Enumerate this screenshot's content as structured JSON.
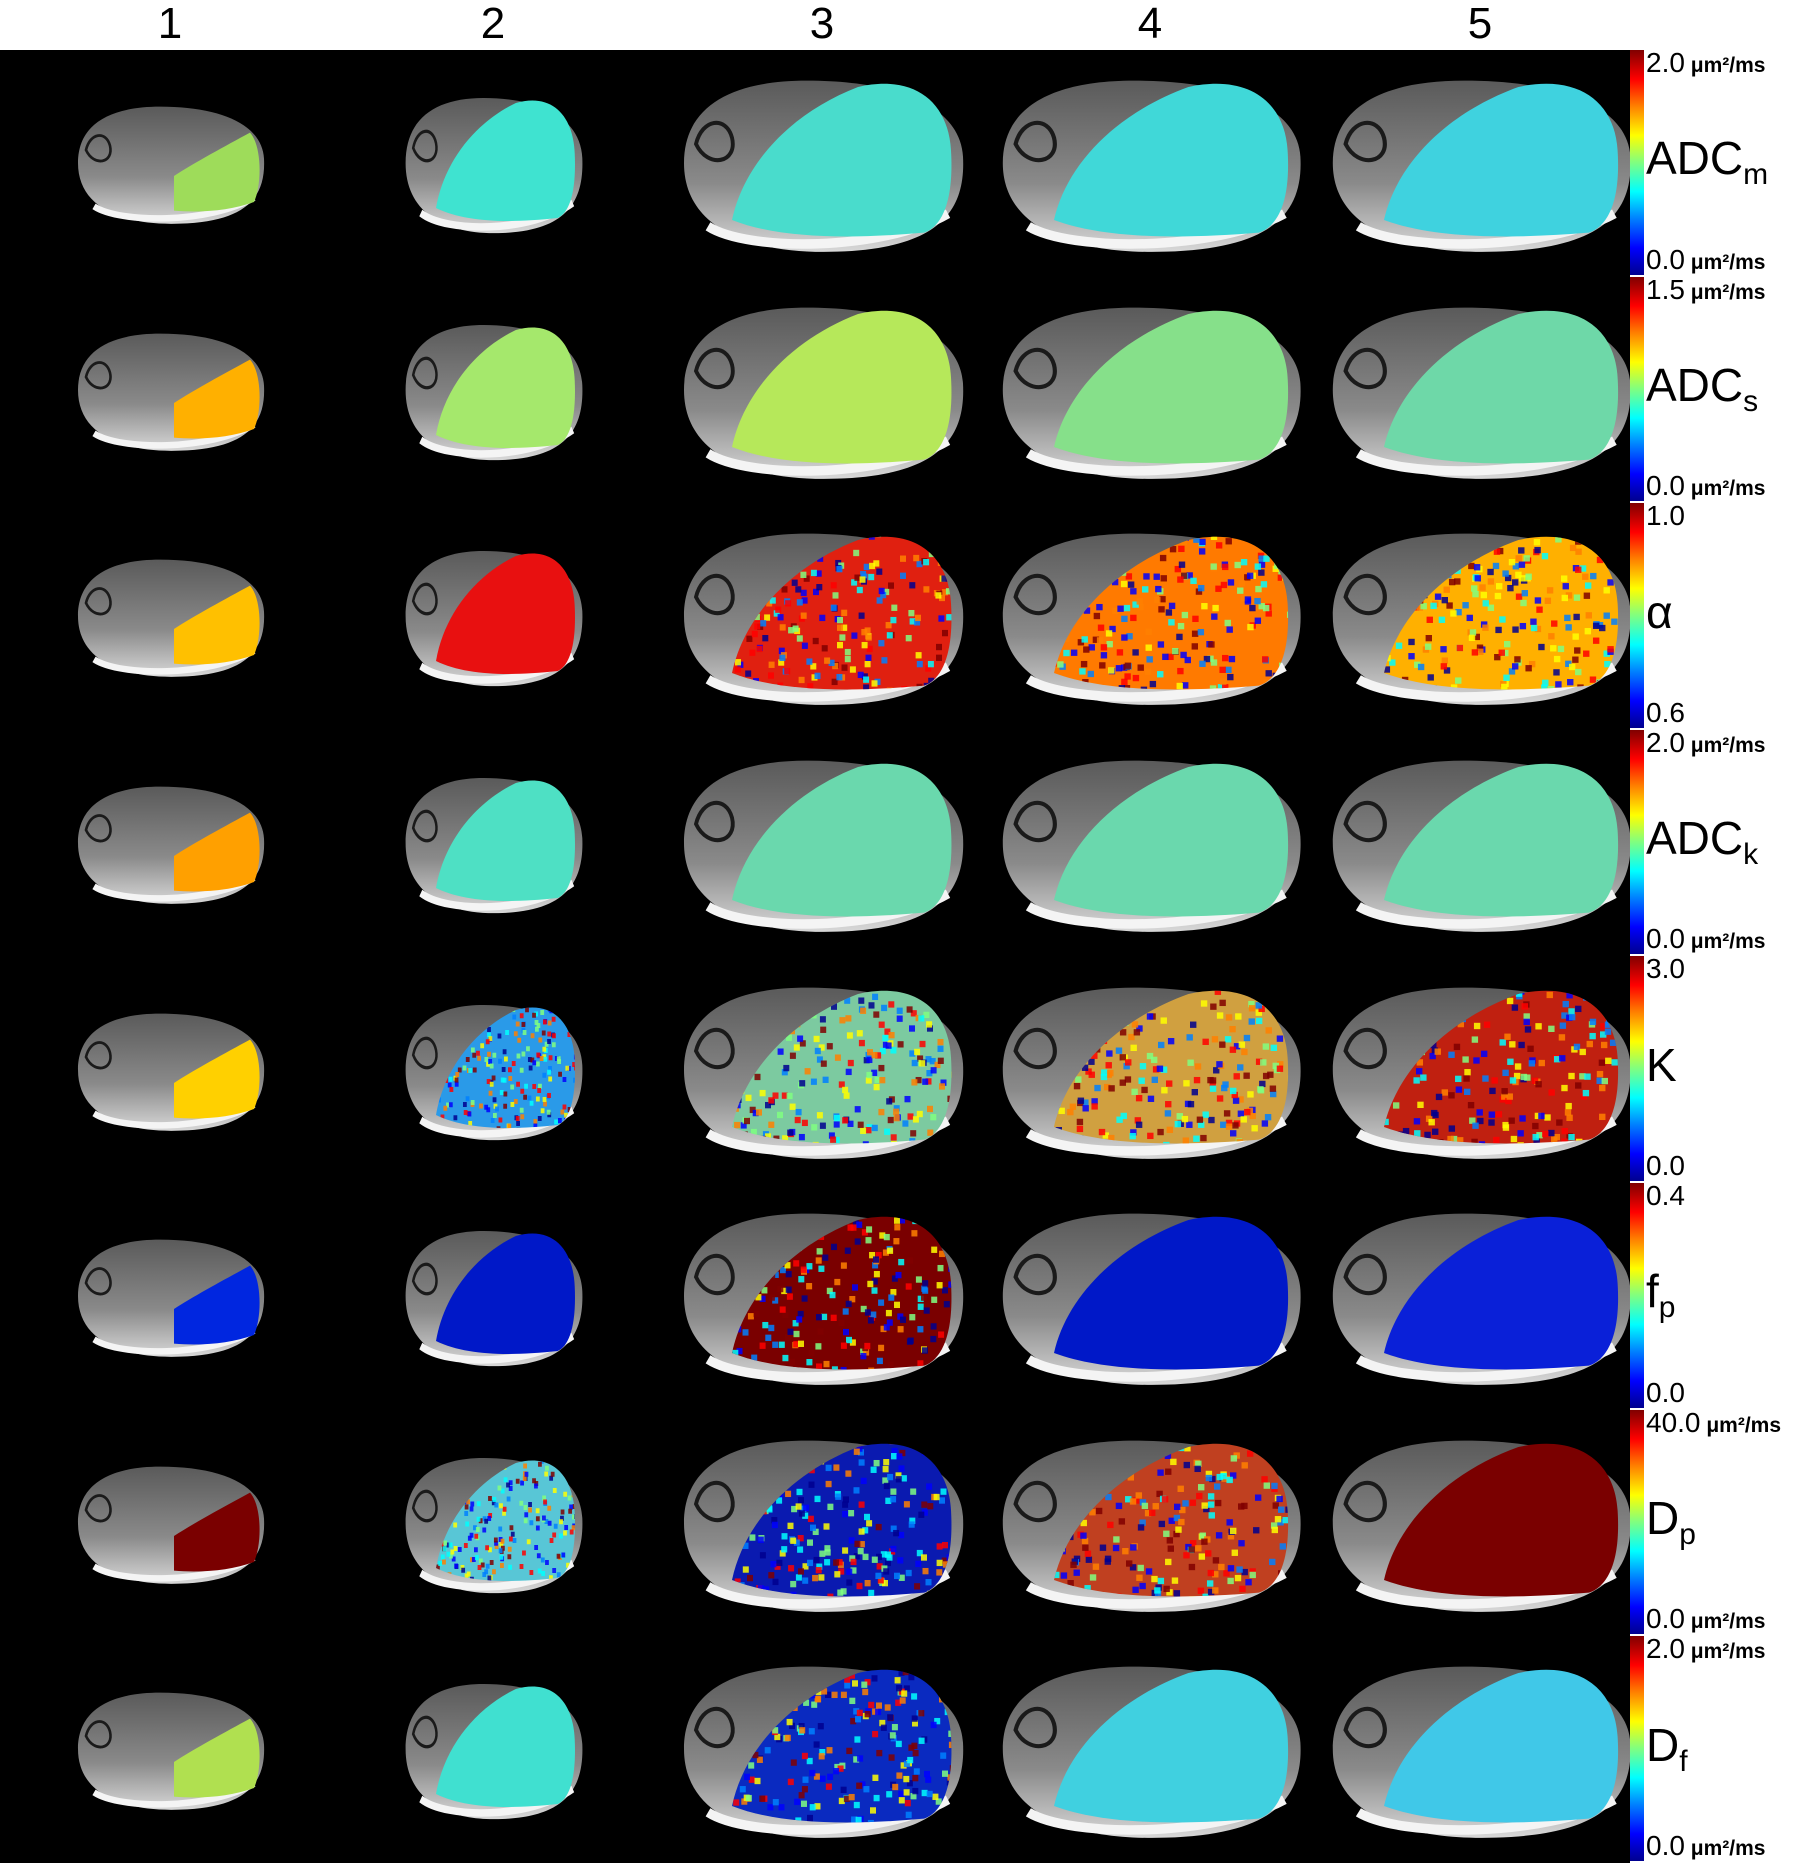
{
  "figure": {
    "column_labels": [
      "1",
      "2",
      "3",
      "4",
      "5"
    ],
    "unit": "μm²/ms",
    "colormap": [
      "#00008f",
      "#0000ff",
      "#0080ff",
      "#00ffff",
      "#80ff80",
      "#ffff00",
      "#ff8000",
      "#ff0000",
      "#800000"
    ],
    "rows": [
      {
        "param_base": "ADC",
        "param_sub": "m",
        "max": "2.0",
        "min": "0.0",
        "has_unit": true,
        "cells": [
          {
            "fill": "#9edc5a",
            "noisy": false
          },
          {
            "fill": "#3fe3d0",
            "noisy": false
          },
          {
            "fill": "#49dccc",
            "noisy": false
          },
          {
            "fill": "#40d8d8",
            "noisy": false
          },
          {
            "fill": "#3fd2df",
            "noisy": false
          }
        ]
      },
      {
        "param_base": "ADC",
        "param_sub": "s",
        "max": "1.5",
        "min": "0.0",
        "has_unit": true,
        "cells": [
          {
            "fill": "#ffb000",
            "noisy": false
          },
          {
            "fill": "#a5e86c",
            "noisy": false
          },
          {
            "fill": "#b6e85a",
            "noisy": false
          },
          {
            "fill": "#86e08a",
            "noisy": false
          },
          {
            "fill": "#6ed8a8",
            "noisy": false
          }
        ]
      },
      {
        "param_base": "α",
        "param_sub": "",
        "max": "1.0",
        "min": "0.6",
        "has_unit": false,
        "cells": [
          {
            "fill": "#ffc000",
            "noisy": false
          },
          {
            "fill": "#e81010",
            "noisy": false
          },
          {
            "fill": "#e02010",
            "noisy": true
          },
          {
            "fill": "#ff7a00",
            "noisy": true
          },
          {
            "fill": "#ffb000",
            "noisy": true
          }
        ]
      },
      {
        "param_base": "ADC",
        "param_sub": "k",
        "max": "2.0",
        "min": "0.0",
        "has_unit": true,
        "cells": [
          {
            "fill": "#ffa000",
            "noisy": false
          },
          {
            "fill": "#4ee0c4",
            "noisy": false
          },
          {
            "fill": "#6ad8ad",
            "noisy": false
          },
          {
            "fill": "#6ad8ad",
            "noisy": false
          },
          {
            "fill": "#6ad8ad",
            "noisy": false
          }
        ]
      },
      {
        "param_base": "K",
        "param_sub": "",
        "max": "3.0",
        "min": "0.0",
        "has_unit": false,
        "cells": [
          {
            "fill": "#ffd000",
            "noisy": false
          },
          {
            "fill": "#2a9ae8",
            "noisy": true
          },
          {
            "fill": "#7ccaa0",
            "noisy": true
          },
          {
            "fill": "#d0a040",
            "noisy": true
          },
          {
            "fill": "#c02010",
            "noisy": true
          }
        ]
      },
      {
        "param_base": "f",
        "param_sub": "p",
        "max": "0.4",
        "min": "0.0",
        "has_unit": false,
        "cells": [
          {
            "fill": "#0026e0",
            "noisy": false
          },
          {
            "fill": "#0018c8",
            "noisy": false
          },
          {
            "fill": "#7a0000",
            "noisy": true
          },
          {
            "fill": "#0018c8",
            "noisy": false
          },
          {
            "fill": "#0a20d8",
            "noisy": false
          }
        ]
      },
      {
        "param_base": "D",
        "param_sub": "p",
        "max": "40.0",
        "min": "0.0",
        "has_unit": true,
        "cells": [
          {
            "fill": "#7a0000",
            "noisy": false
          },
          {
            "fill": "#58c6d6",
            "noisy": true
          },
          {
            "fill": "#0a1ab0",
            "noisy": true
          },
          {
            "fill": "#c04020",
            "noisy": true
          },
          {
            "fill": "#7a0000",
            "noisy": false
          }
        ]
      },
      {
        "param_base": "D",
        "param_sub": "f",
        "max": "2.0",
        "min": "0.0",
        "has_unit": true,
        "cells": [
          {
            "fill": "#b0e050",
            "noisy": false
          },
          {
            "fill": "#40e0d0",
            "noisy": false
          },
          {
            "fill": "#0a2ac0",
            "noisy": true
          },
          {
            "fill": "#40d0e0",
            "noisy": false
          },
          {
            "fill": "#40c8e8",
            "noisy": false
          }
        ]
      }
    ]
  }
}
